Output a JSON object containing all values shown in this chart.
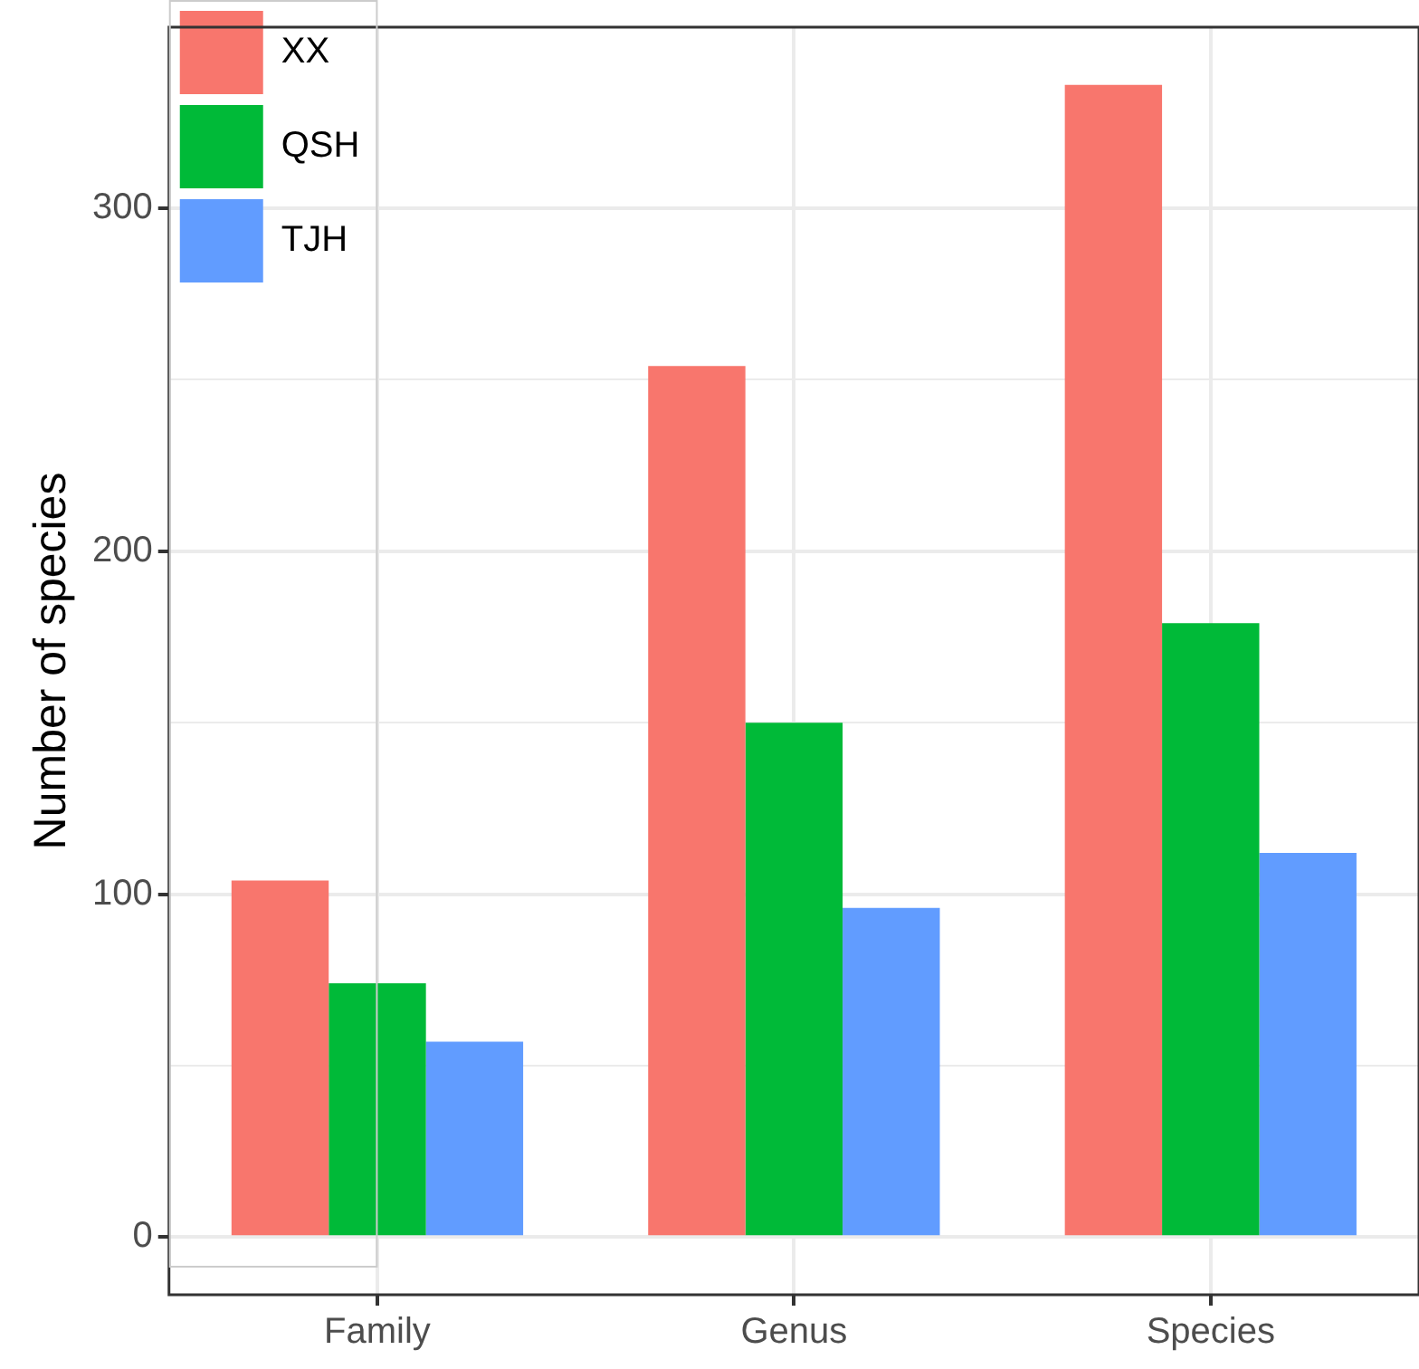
{
  "chart_data": {
    "type": "bar",
    "ylabel": "Number of species",
    "categories": [
      "Family",
      "Genus",
      "Species"
    ],
    "series": [
      {
        "name": "XX",
        "color": "#f8766d",
        "values": [
          104,
          254,
          336
        ]
      },
      {
        "name": "QSH",
        "color": "#00ba38",
        "values": [
          74,
          150,
          179
        ]
      },
      {
        "name": "TJH",
        "color": "#619cff",
        "values": [
          57,
          96,
          112
        ]
      }
    ],
    "ylim": [
      -16.8,
      352.8
    ],
    "yticks": [
      0,
      {
        "value": 50,
        "label": null
      },
      100,
      {
        "value": 150,
        "label": null
      },
      200,
      {
        "value": 250,
        "label": null
      },
      300
    ],
    "grid": true,
    "legend": "top left"
  }
}
